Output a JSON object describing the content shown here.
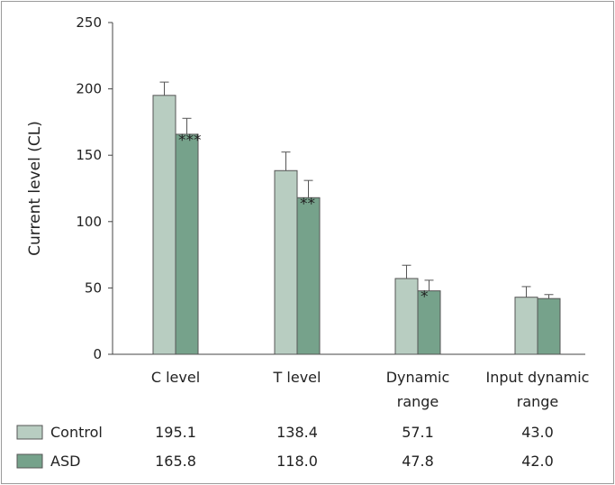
{
  "chart_data": {
    "type": "bar",
    "ylabel": "Current level (CL)",
    "ylim": [
      0,
      250
    ],
    "yticks": [
      0,
      50,
      100,
      150,
      200,
      250
    ],
    "grid": false,
    "categories": [
      {
        "line1": "C level",
        "line2": ""
      },
      {
        "line1": "T level",
        "line2": ""
      },
      {
        "line1": "Dynamic",
        "line2": "range"
      },
      {
        "line1": "Input dynamic",
        "line2": "range"
      }
    ],
    "series": [
      {
        "name": "Control",
        "color": "#b8cdc1",
        "values": [
          195.1,
          138.4,
          57.1,
          43.0
        ],
        "errors": [
          10,
          14,
          10,
          8
        ],
        "labels": [
          "195.1",
          "138.4",
          "57.1",
          "43.0"
        ],
        "significance": [
          "",
          "",
          "",
          ""
        ]
      },
      {
        "name": "ASD",
        "color": "#76a28b",
        "values": [
          165.8,
          118.0,
          47.8,
          42.0
        ],
        "errors": [
          12,
          13,
          8,
          3
        ],
        "labels": [
          "165.8",
          "118.0",
          "47.8",
          "42.0"
        ],
        "significance": [
          "***",
          "**",
          "*",
          ""
        ]
      }
    ]
  }
}
